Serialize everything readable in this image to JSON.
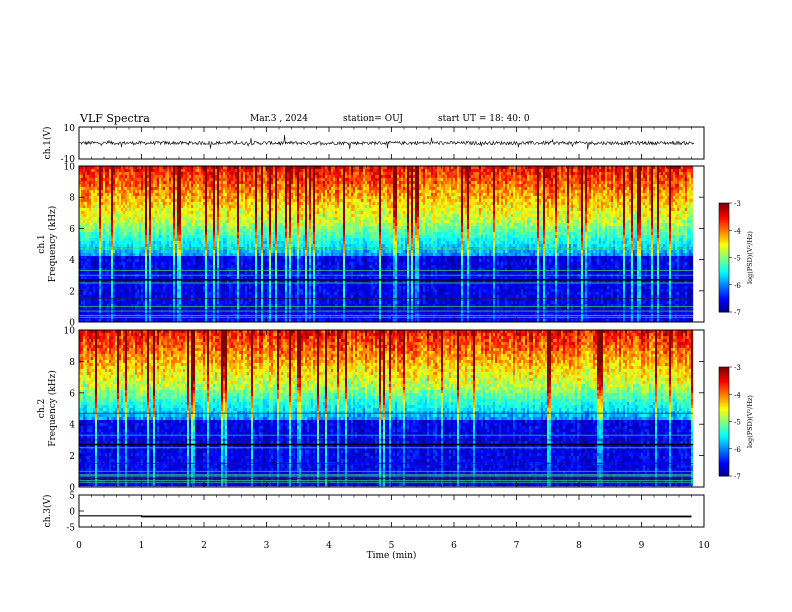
{
  "header": {
    "title": "VLF Spectra",
    "date": "Mar.3 , 2024",
    "station": "station= OUJ",
    "start": "start UT = 18: 40: 0"
  },
  "chart_data": [
    {
      "type": "line",
      "ylabel": "ch.1(V)",
      "ylim": [
        -10,
        10
      ],
      "yticks": [
        10,
        -10
      ],
      "xlim": [
        0,
        10
      ],
      "description_level": 0,
      "series": [
        {
          "values": "noise-around-zero"
        }
      ],
      "color": "#000000"
    },
    {
      "type": "heatmap",
      "ylabel": "ch.1\nFrequency (kHz)",
      "ylim": [
        0,
        10
      ],
      "yticks": [
        "0",
        "2",
        "4",
        "6",
        "8",
        "10"
      ],
      "xlim": [
        0,
        10
      ],
      "colorbar": {
        "label": "log(PSD)(V²/Hz)",
        "ticks": [
          "-3",
          "-4",
          "-5",
          "-6",
          "-7"
        ],
        "range": [
          -7,
          -3
        ]
      }
    },
    {
      "type": "heatmap",
      "ylabel": "ch.2\nFrequency (kHz)",
      "ylim": [
        0,
        10
      ],
      "yticks": [
        "0",
        "2",
        "4",
        "6",
        "8",
        "10"
      ],
      "xlim": [
        0,
        10
      ],
      "colorbar": {
        "label": "log(PSD)(V²/Hz)",
        "ticks": [
          "-3",
          "-4",
          "-5",
          "-6",
          "-7"
        ],
        "range": [
          -7,
          -3
        ]
      }
    },
    {
      "type": "line",
      "ylabel": "ch.3(V)",
      "ylim": [
        -5,
        5
      ],
      "yticks": [
        "5",
        "0",
        "-5"
      ],
      "xlim": [
        0,
        10
      ],
      "series": [
        {
          "x": [
            0,
            1,
            1,
            9.8
          ],
          "values": [
            -1.5,
            -1.5,
            -1.7,
            -1.7
          ]
        }
      ],
      "xticks": [
        "0",
        "1",
        "2",
        "3",
        "4",
        "5",
        "6",
        "7",
        "8",
        "9",
        "10"
      ],
      "xlabel": "Time (min)"
    }
  ]
}
